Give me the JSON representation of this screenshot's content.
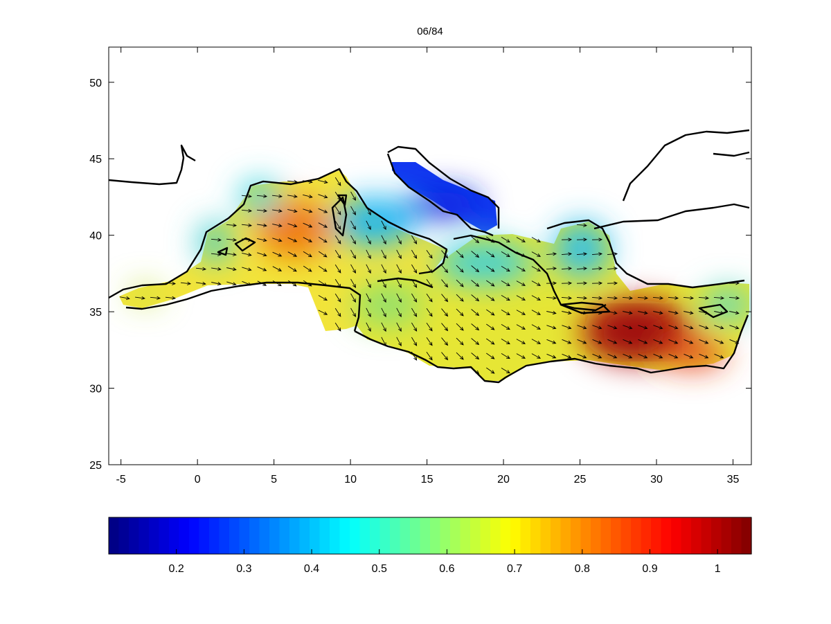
{
  "title": "06/84",
  "map": {
    "x_range": [
      -5.8,
      36.2
    ],
    "y_range": [
      25,
      52.3
    ],
    "x_ticks": [
      "-5",
      "0",
      "5",
      "10",
      "15",
      "20",
      "25",
      "30",
      "35"
    ],
    "y_ticks": [
      "25",
      "30",
      "35",
      "40",
      "45",
      "50"
    ],
    "x_tick_values": [
      -5,
      0,
      5,
      10,
      15,
      20,
      25,
      30,
      35
    ],
    "y_tick_values": [
      25,
      30,
      35,
      40,
      45,
      50
    ]
  },
  "colorbar": {
    "range": [
      0.1,
      1.05
    ],
    "ticks": [
      "0.2",
      "0.3",
      "0.4",
      "0.5",
      "0.6",
      "0.7",
      "0.8",
      "0.9",
      "1"
    ],
    "tick_values": [
      0.2,
      0.3,
      0.4,
      0.5,
      0.6,
      0.7,
      0.8,
      0.9,
      1.0
    ],
    "colormap": "jet"
  }
}
